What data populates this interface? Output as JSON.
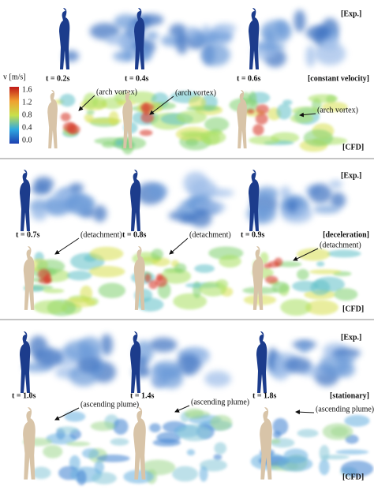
{
  "colorbar": {
    "label": "v [m/s]",
    "ticks": [
      "1.6",
      "1.2",
      "0.8",
      "0.4",
      "0.0"
    ]
  },
  "sections": [
    {
      "exp_label": "[Exp.]",
      "phase": "[constant velocity]",
      "cfd_label": "[CFD]",
      "times": [
        "t = 0.2s",
        "t = 0.4s",
        "t = 0.6s"
      ],
      "annotations": [
        "(arch vortex)",
        "(arch vortex)",
        "(arch vortex)"
      ]
    },
    {
      "exp_label": "[Exp.]",
      "phase": "[deceleration]",
      "cfd_label": "[CFD]",
      "times": [
        "t = 0.7s",
        "t = 0.8s",
        "t = 0.9s"
      ],
      "annotations": [
        "(detachment)",
        "(detachment)",
        "(detachment)"
      ]
    },
    {
      "exp_label": "[Exp.]",
      "phase": "[stationary]",
      "cfd_label": "[CFD]",
      "times": [
        "t = 1.0s",
        "t = 1.4s",
        "t = 1.8s"
      ],
      "annotations": [
        "(ascending plume)",
        "(ascending plume)",
        "(ascending plume)"
      ]
    }
  ]
}
